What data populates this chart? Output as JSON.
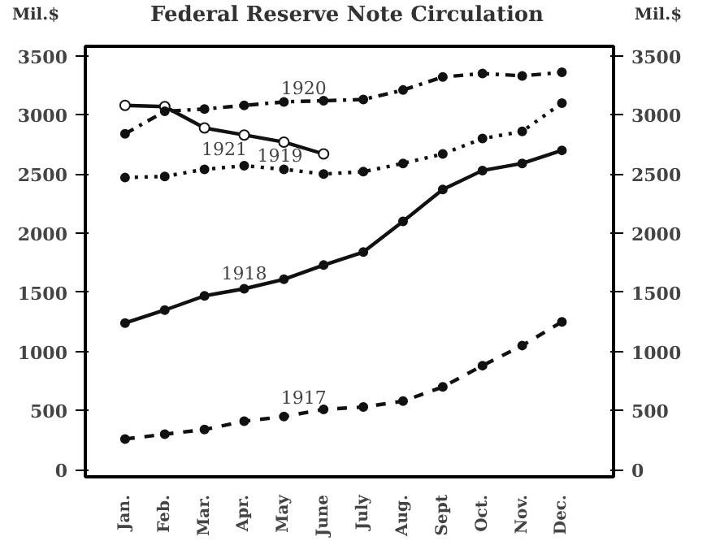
{
  "chart_data": {
    "type": "line",
    "title": "Federal Reserve Note Circulation",
    "ylabel": "Mil.$",
    "y2label": "Mil.$",
    "categories": [
      "Jan.",
      "Feb.",
      "Mar.",
      "Apr.",
      "May",
      "June",
      "July",
      "Aug.",
      "Sept",
      "Oct.",
      "Nov.",
      "Dec."
    ],
    "series": [
      {
        "name": "1920",
        "color": "#111111",
        "line_style": "dashdot",
        "marker": "circle",
        "values": [
          2840,
          3030,
          3050,
          3080,
          3110,
          3120,
          3130,
          3210,
          3320,
          3350,
          3330,
          3360
        ]
      },
      {
        "name": "1921",
        "color": "#111111",
        "line_style": "solid",
        "marker": "open circle",
        "values": [
          3080,
          3070,
          2890,
          2830,
          2770,
          2670,
          null,
          null,
          null,
          null,
          null,
          null
        ]
      },
      {
        "name": "1919",
        "color": "#111111",
        "line_style": "dotted",
        "marker": "circle",
        "values": [
          2470,
          2480,
          2540,
          2570,
          2540,
          2500,
          2520,
          2590,
          2670,
          2800,
          2860,
          3100
        ]
      },
      {
        "name": "1918",
        "color": "#111111",
        "line_style": "solid",
        "marker": "circle",
        "values": [
          1240,
          1350,
          1470,
          1530,
          1610,
          1730,
          1840,
          2100,
          2370,
          2530,
          2590,
          2700
        ]
      },
      {
        "name": "1917",
        "color": "#111111",
        "line_style": "dashed",
        "marker": "circle",
        "values": [
          260,
          300,
          340,
          410,
          450,
          510,
          530,
          580,
          700,
          880,
          1050,
          1250
        ]
      }
    ],
    "ylim": [
      -60,
      3580
    ],
    "yticks": [
      0,
      500,
      1000,
      1500,
      2000,
      2500,
      3000,
      3500
    ],
    "y2lim": [
      -60,
      3580
    ],
    "y2ticks": [
      0,
      500,
      1000,
      1500,
      2000,
      2500,
      3000,
      3500
    ],
    "grid": false
  }
}
